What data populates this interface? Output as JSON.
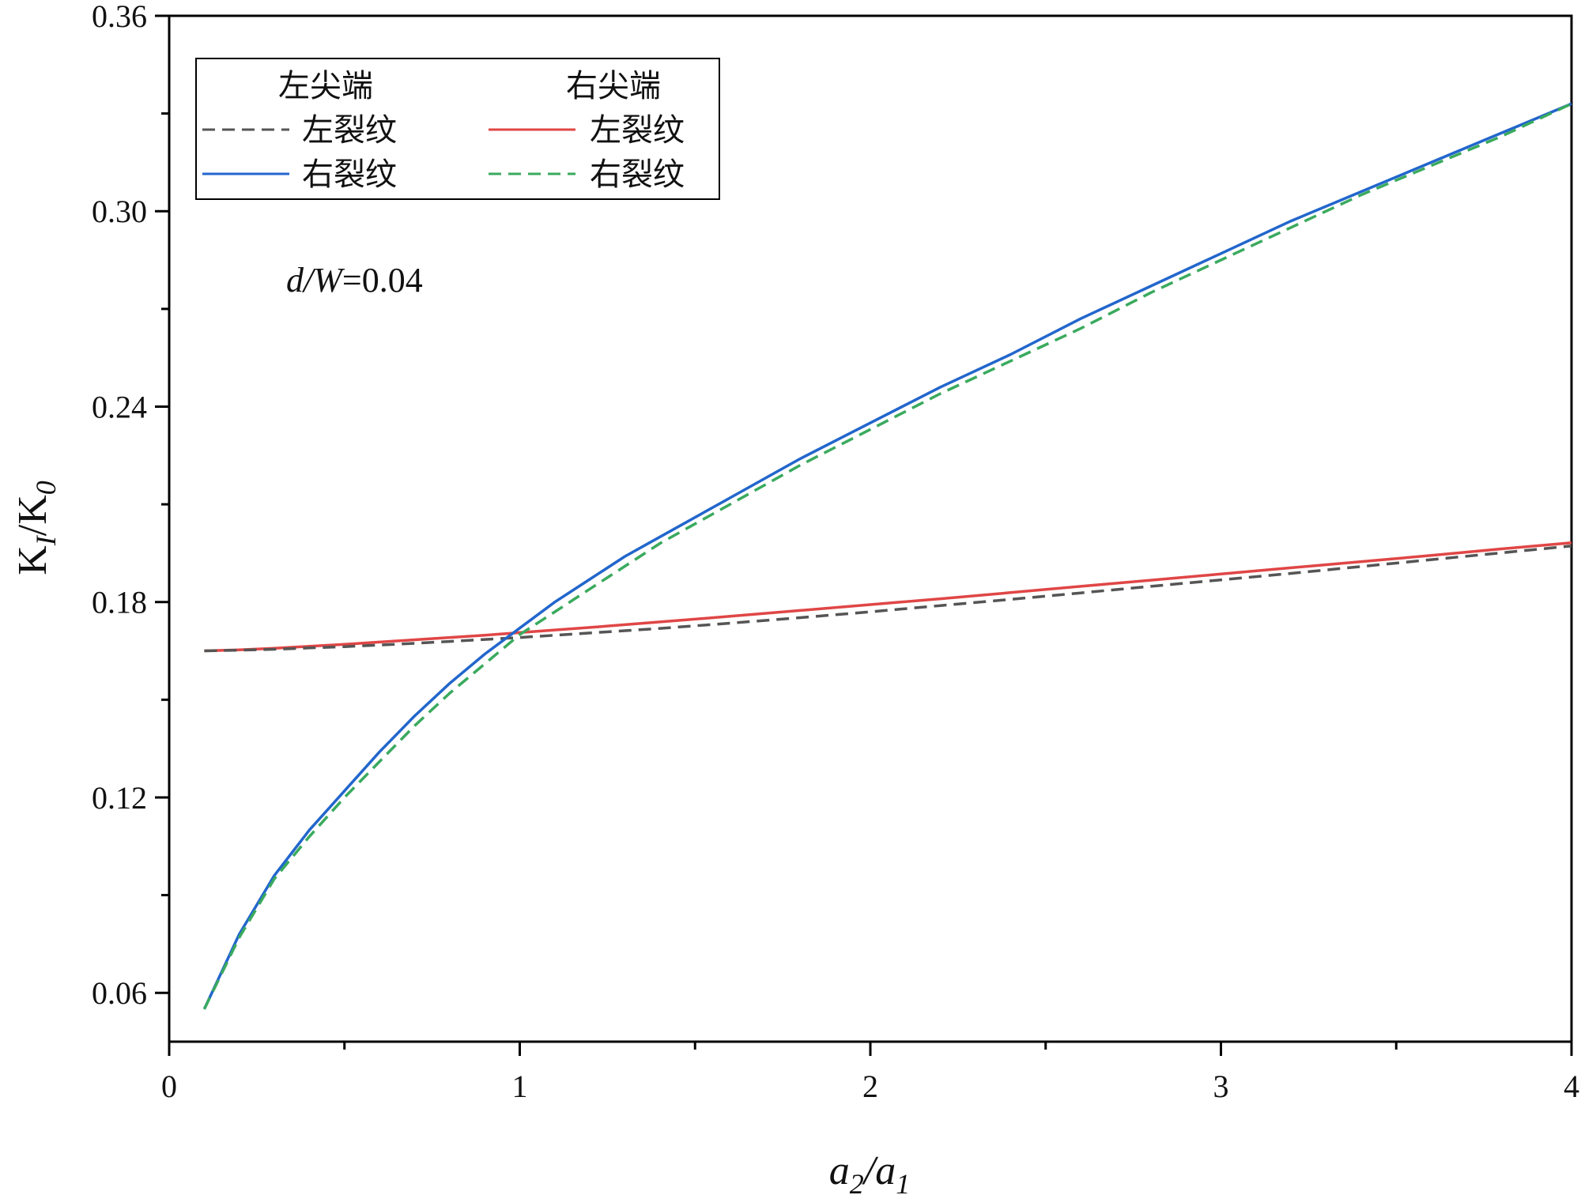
{
  "chart_data": {
    "type": "line",
    "xlabel": {
      "base": "a",
      "sub": "2",
      "mid": "/a",
      "sub2": "1"
    },
    "ylabel": {
      "base": "K",
      "sub": "I",
      "mid": "/K",
      "sub2": "0"
    },
    "xlim": [
      0,
      4
    ],
    "ylim": [
      0.045,
      0.36
    ],
    "x_ticks": [
      "0",
      "1",
      "2",
      "3",
      "4"
    ],
    "y_ticks": [
      "0.06",
      "0.12",
      "0.18",
      "0.24",
      "0.30",
      "0.36"
    ],
    "grid": false,
    "legend": {
      "placement": "top-left",
      "group_left": "左尖端",
      "group_right": "右尖端"
    },
    "annotation": {
      "italic": "d/W",
      "rest": "=0.04"
    },
    "series": [
      {
        "name": "左裂纹",
        "group": "左尖端",
        "color": "#555555",
        "style": "dashed",
        "x": [
          0.1,
          0.2,
          0.3,
          0.4,
          0.5,
          0.6,
          0.7,
          0.8,
          0.9,
          1.0,
          1.2,
          1.4,
          1.6,
          1.8,
          2.0,
          2.2,
          2.4,
          2.6,
          2.8,
          3.0,
          3.2,
          3.4,
          3.6,
          3.8,
          4.0
        ],
        "y": [
          0.165,
          0.1652,
          0.1655,
          0.1659,
          0.1663,
          0.1668,
          0.1673,
          0.1679,
          0.1685,
          0.1691,
          0.1705,
          0.1719,
          0.1735,
          0.1752,
          0.177,
          0.1789,
          0.1808,
          0.1828,
          0.1848,
          0.1868,
          0.1888,
          0.1909,
          0.193,
          0.1951,
          0.1972
        ]
      },
      {
        "name": "右裂纹",
        "group": "左尖端",
        "color": "#2266cc",
        "style": "solid",
        "x": [
          0.1,
          0.2,
          0.3,
          0.4,
          0.5,
          0.6,
          0.7,
          0.8,
          0.9,
          1.0,
          1.1,
          1.2,
          1.3,
          1.4,
          1.6,
          1.8,
          2.0,
          2.2,
          2.4,
          2.6,
          2.8,
          3.0,
          3.2,
          3.4,
          3.6,
          3.8,
          4.0
        ],
        "y": [
          0.055,
          0.078,
          0.096,
          0.11,
          0.122,
          0.134,
          0.145,
          0.155,
          0.164,
          0.172,
          0.18,
          0.187,
          0.194,
          0.2,
          0.212,
          0.224,
          0.235,
          0.246,
          0.256,
          0.267,
          0.277,
          0.287,
          0.297,
          0.306,
          0.315,
          0.324,
          0.333
        ]
      },
      {
        "name": "左裂纹",
        "group": "右尖端",
        "color": "#e04646",
        "style": "solid",
        "x": [
          0.1,
          0.2,
          0.3,
          0.4,
          0.5,
          0.6,
          0.7,
          0.8,
          0.9,
          1.0,
          1.2,
          1.4,
          1.6,
          1.8,
          2.0,
          2.2,
          2.4,
          2.6,
          2.8,
          3.0,
          3.2,
          3.4,
          3.6,
          3.8,
          4.0
        ],
        "y": [
          0.165,
          0.1653,
          0.1658,
          0.1664,
          0.167,
          0.1677,
          0.1684,
          0.1691,
          0.1698,
          0.1706,
          0.1722,
          0.1739,
          0.1756,
          0.1774,
          0.1792,
          0.181,
          0.1829,
          0.1848,
          0.1867,
          0.1886,
          0.1905,
          0.1924,
          0.1943,
          0.1963,
          0.1982
        ]
      },
      {
        "name": "右裂纹",
        "group": "右尖端",
        "color": "#3aaa5e",
        "style": "dashed",
        "x": [
          0.1,
          0.2,
          0.3,
          0.4,
          0.5,
          0.6,
          0.7,
          0.8,
          0.9,
          1.0,
          1.1,
          1.2,
          1.3,
          1.4,
          1.6,
          1.8,
          2.0,
          2.2,
          2.4,
          2.6,
          2.8,
          3.0,
          3.2,
          3.4,
          3.6,
          3.8,
          4.0
        ],
        "y": [
          0.055,
          0.077,
          0.095,
          0.108,
          0.12,
          0.131,
          0.142,
          0.152,
          0.161,
          0.17,
          0.177,
          0.184,
          0.191,
          0.198,
          0.21,
          0.222,
          0.233,
          0.244,
          0.254,
          0.264,
          0.275,
          0.285,
          0.295,
          0.305,
          0.314,
          0.323,
          0.333
        ]
      }
    ]
  }
}
